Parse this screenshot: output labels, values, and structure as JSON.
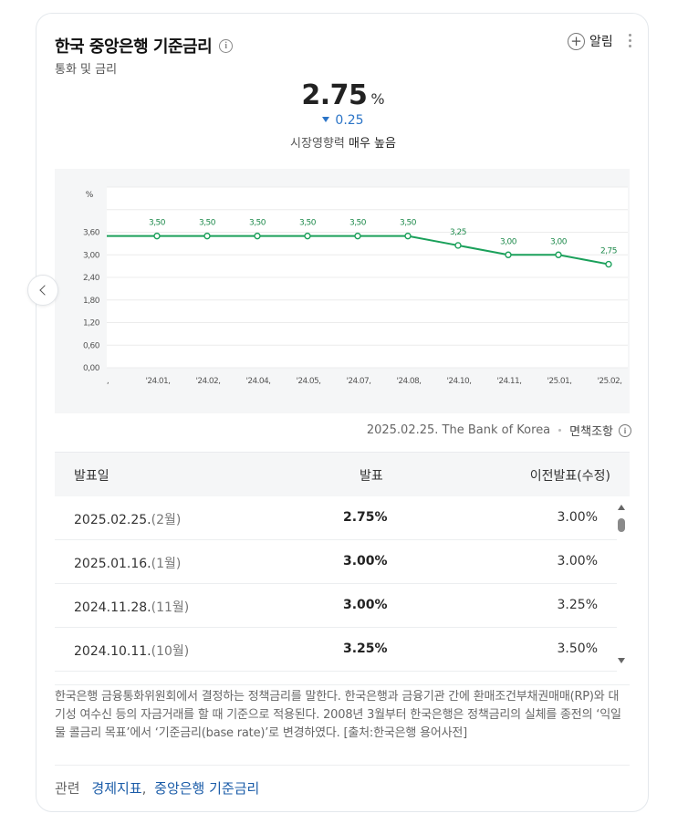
{
  "header": {
    "title": "한국 중앙은행 기준금리",
    "subtitle": "통화 및 금리",
    "alarm_label": "알림"
  },
  "rate": {
    "value": "2.75",
    "unit": "%",
    "change": "0.25",
    "change_direction": "down",
    "influence_prefix": "시장영향력",
    "influence_value": "매우 높음"
  },
  "chart_data": {
    "type": "line",
    "yunit": "%",
    "x": [
      "",
      "'24.01.",
      "'24.02.",
      "'24.04.",
      "'24.05.",
      "'24.07.",
      "'24.08.",
      "'24.10.",
      "'24.11.",
      "'25.01.",
      "'25.02."
    ],
    "values": [
      3.5,
      3.5,
      3.5,
      3.5,
      3.5,
      3.5,
      3.5,
      3.25,
      3.0,
      3.0,
      2.75
    ],
    "point_labels": [
      "",
      "3.50",
      "3.50",
      "3.50",
      "3.50",
      "3.50",
      "3.50",
      "3.25",
      "3.00",
      "3.00",
      "2.75"
    ],
    "yticks": [
      "0.00",
      "0.60",
      "1.20",
      "1.80",
      "2.40",
      "3.00",
      "3.60"
    ],
    "ylim": [
      0,
      4.8
    ],
    "grid": true,
    "line_color": "#1aa05a"
  },
  "source": {
    "text": "2025.02.25. The Bank of Korea",
    "disclaimer": "면책조항"
  },
  "table": {
    "headers": [
      "발표일",
      "발표",
      "이전발표(수정)"
    ],
    "rows": [
      {
        "date": "2025.02.25.",
        "month": "(2월)",
        "value": "2.75%",
        "previous": "3.00%"
      },
      {
        "date": "2025.01.16.",
        "month": "(1월)",
        "value": "3.00%",
        "previous": "3.00%"
      },
      {
        "date": "2024.11.28.",
        "month": "(11월)",
        "value": "3.00%",
        "previous": "3.25%"
      },
      {
        "date": "2024.10.11.",
        "month": "(10월)",
        "value": "3.25%",
        "previous": "3.50%"
      }
    ]
  },
  "description": "한국은행 금융통화위원회에서 결정하는 정책금리를 말한다. 한국은행과 금융기관 간에 환매조건부채권매매(RP)와 대기성 여수신 등의 자금거래를 할 때 기준으로 적용된다. 2008년 3월부터 한국은행은 정책금리의 실체를 종전의 ‘익일물 콜금리 목표’에서 ‘기준금리(base rate)’로 변경하였다. [출처:한국은행 용어사전]",
  "related": {
    "label": "관련",
    "links": [
      "경제지표",
      "중앙은행 기준금리"
    ]
  }
}
